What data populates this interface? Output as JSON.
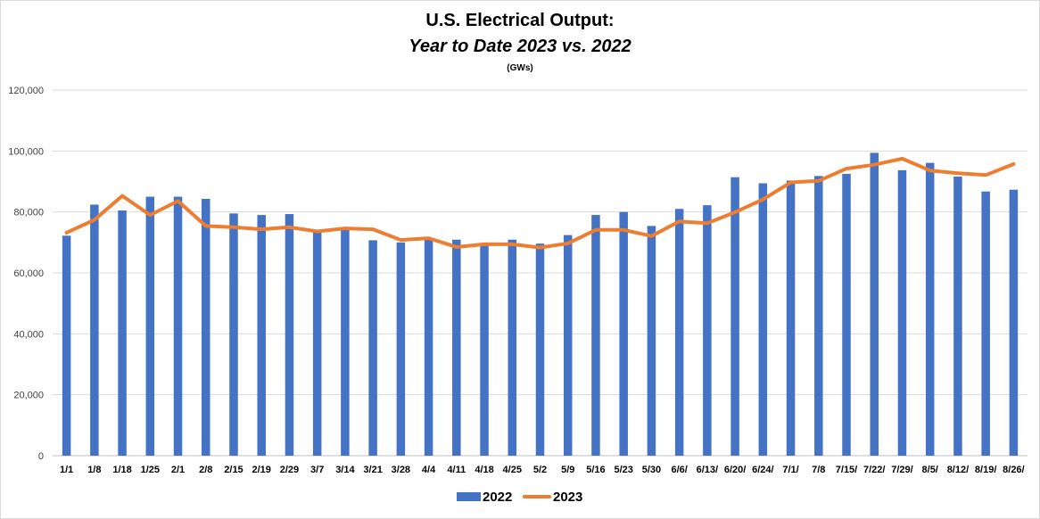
{
  "chart_data": {
    "type": "bar",
    "title": "U.S. Electrical Output:",
    "subtitle": "Year to Date 2023 vs. 2022",
    "unit_label": "(GWs)",
    "ylim": [
      0,
      120000
    ],
    "yticks": [
      "0",
      "20,000",
      "40,000",
      "60,000",
      "80,000",
      "100,000",
      "120,000"
    ],
    "grid": true,
    "legend_position": "bottom",
    "categories": [
      "1/1",
      "1/8",
      "1/18",
      "1/25",
      "2/1",
      "2/8",
      "2/15",
      "2/19",
      "2/29",
      "3/7",
      "3/14",
      "3/21",
      "3/28",
      "4/4",
      "4/11",
      "4/18",
      "4/25",
      "5/2",
      "5/9",
      "5/16",
      "5/23",
      "5/30",
      "6/6/",
      "6/13/",
      "6/20/",
      "6/24/",
      "7/1/",
      "7/8",
      "7/15/",
      "7/22/",
      "7/29/",
      "8/5/",
      "8/12/",
      "8/19/",
      "8/26/"
    ],
    "series": [
      {
        "name": "2022",
        "kind": "bar",
        "color": "#4472c4",
        "values": [
          72200,
          82400,
          80500,
          85000,
          85000,
          84300,
          79500,
          79000,
          79300,
          73800,
          74500,
          70700,
          70000,
          70900,
          70900,
          69300,
          70900,
          69600,
          72400,
          79000,
          80000,
          75400,
          81000,
          82200,
          91400,
          89400,
          90300,
          91800,
          92500,
          99400,
          93700,
          96100,
          91600,
          86700,
          87300
        ]
      },
      {
        "name": "2023",
        "kind": "line",
        "color": "#ed7d31",
        "values": [
          73200,
          77400,
          85300,
          79000,
          83600,
          75400,
          75000,
          74300,
          75000,
          73600,
          74600,
          74300,
          70800,
          71400,
          68500,
          69400,
          69400,
          68300,
          69700,
          74100,
          74100,
          72100,
          76900,
          76300,
          79900,
          84100,
          89700,
          90200,
          94200,
          95500,
          97500,
          93600,
          92700,
          92100,
          95700
        ]
      }
    ]
  }
}
